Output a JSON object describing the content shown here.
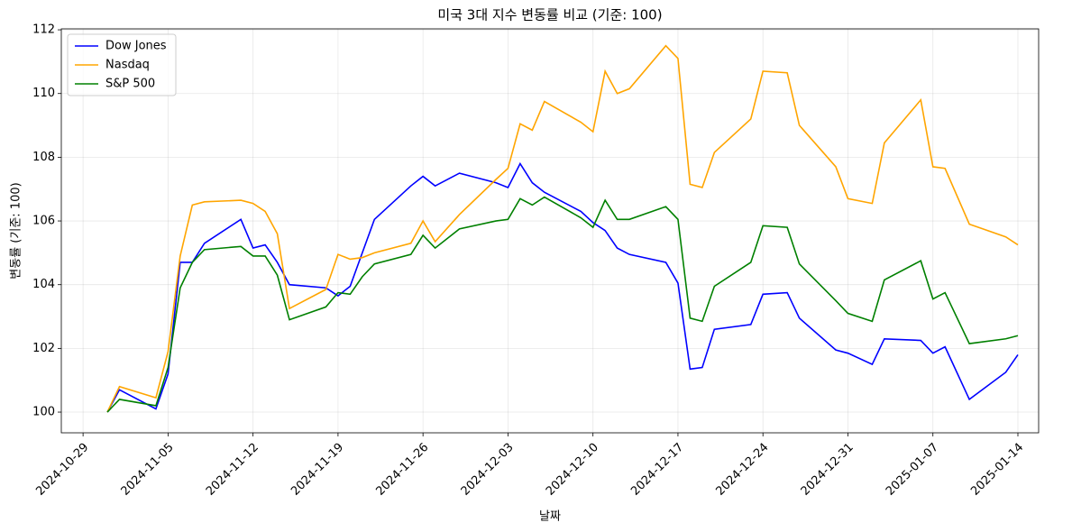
{
  "chart_data": {
    "type": "line",
    "title": "미국 3대 지수 변동률 비교 (기준: 100)",
    "xlabel": "날짜",
    "ylabel": "변동률 (기준: 100)",
    "x": [
      "2024-10-31",
      "2024-11-01",
      "2024-11-04",
      "2024-11-05",
      "2024-11-06",
      "2024-11-07",
      "2024-11-08",
      "2024-11-11",
      "2024-11-12",
      "2024-11-13",
      "2024-11-14",
      "2024-11-15",
      "2024-11-18",
      "2024-11-19",
      "2024-11-20",
      "2024-11-21",
      "2024-11-22",
      "2024-11-25",
      "2024-11-26",
      "2024-11-27",
      "2024-11-29",
      "2024-12-02",
      "2024-12-03",
      "2024-12-04",
      "2024-12-05",
      "2024-12-06",
      "2024-12-09",
      "2024-12-10",
      "2024-12-11",
      "2024-12-12",
      "2024-12-13",
      "2024-12-16",
      "2024-12-17",
      "2024-12-18",
      "2024-12-19",
      "2024-12-20",
      "2024-12-23",
      "2024-12-24",
      "2024-12-26",
      "2024-12-27",
      "2024-12-30",
      "2024-12-31",
      "2025-01-02",
      "2025-01-03",
      "2025-01-06",
      "2025-01-07",
      "2025-01-08",
      "2025-01-10",
      "2025-01-13",
      "2025-01-14"
    ],
    "series": [
      {
        "name": "Dow Jones",
        "color": "#0000ff",
        "values": [
          100,
          100.7,
          100.1,
          101.2,
          104.7,
          104.7,
          105.3,
          106.05,
          105.15,
          105.25,
          104.7,
          104.0,
          103.9,
          103.65,
          103.95,
          105.0,
          106.05,
          107.1,
          107.4,
          107.1,
          107.5,
          107.2,
          107.05,
          107.8,
          107.2,
          106.9,
          106.3,
          105.95,
          105.7,
          105.15,
          104.95,
          104.7,
          104.05,
          101.35,
          101.4,
          102.6,
          102.75,
          103.7,
          103.75,
          102.95,
          101.95,
          101.85,
          101.5,
          102.3,
          102.25,
          101.85,
          102.05,
          100.4,
          101.25,
          101.8
        ]
      },
      {
        "name": "Nasdaq",
        "color": "#ffa500",
        "values": [
          100,
          100.8,
          100.45,
          101.9,
          104.9,
          106.5,
          106.6,
          106.65,
          106.55,
          106.3,
          105.6,
          103.25,
          103.85,
          104.95,
          104.8,
          104.85,
          105.0,
          105.3,
          106.0,
          105.35,
          106.2,
          107.3,
          107.65,
          109.05,
          108.85,
          109.75,
          109.1,
          108.8,
          110.7,
          110.0,
          110.15,
          111.5,
          111.1,
          107.15,
          107.05,
          108.15,
          109.2,
          110.7,
          110.65,
          109.0,
          107.7,
          106.7,
          106.55,
          108.45,
          109.8,
          107.7,
          107.65,
          105.9,
          105.5,
          105.25
        ]
      },
      {
        "name": "S&P 500",
        "color": "#008000",
        "values": [
          100,
          100.4,
          100.2,
          101.4,
          103.9,
          104.7,
          105.1,
          105.2,
          104.9,
          104.9,
          104.3,
          102.9,
          103.3,
          103.75,
          103.7,
          104.25,
          104.65,
          104.95,
          105.55,
          105.15,
          105.75,
          106.0,
          106.05,
          106.7,
          106.5,
          106.75,
          106.1,
          105.8,
          106.65,
          106.05,
          106.05,
          106.45,
          106.05,
          102.95,
          102.85,
          103.95,
          104.7,
          105.85,
          105.8,
          104.65,
          103.5,
          103.1,
          102.85,
          104.15,
          104.75,
          103.55,
          103.75,
          102.15,
          102.3,
          102.4
        ]
      }
    ],
    "xlim": [
      "2024-10-27T05:00",
      "2025-01-15T17:00"
    ],
    "xticks": [
      "2024-10-29",
      "2024-11-05",
      "2024-11-12",
      "2024-11-19",
      "2024-11-26",
      "2024-12-03",
      "2024-12-10",
      "2024-12-17",
      "2024-12-24",
      "2024-12-31",
      "2025-01-07",
      "2025-01-14"
    ],
    "ylim": [
      99.35,
      112.03
    ],
    "yticks": [
      100,
      102,
      104,
      106,
      108,
      110,
      112
    ],
    "grid": true,
    "legend": "upper left"
  }
}
